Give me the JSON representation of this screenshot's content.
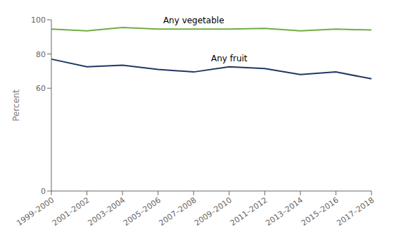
{
  "chart_data": {
    "type": "line",
    "categories": [
      "1999–2000",
      "2001–2002",
      "2003–2004",
      "2005–2006",
      "2007–2008",
      "2009–2010",
      "2011–2012",
      "2013–2014",
      "2015–2016",
      "2017–2018"
    ],
    "series": [
      {
        "name": "Any vegetable",
        "color": "#70AD47",
        "values": [
          94.5,
          93.5,
          95.5,
          94.5,
          94.5,
          94.5,
          95.0,
          93.5,
          94.5,
          94.0
        ]
      },
      {
        "name": "Any fruit",
        "color": "#1F3864",
        "values": [
          77.0,
          72.5,
          73.5,
          71.0,
          69.5,
          72.5,
          71.5,
          68.0,
          69.5,
          65.5
        ]
      }
    ],
    "y_label": "Percent",
    "ylim": [
      0,
      100
    ],
    "yticks": [
      0,
      60,
      80,
      100
    ],
    "grid": false
  }
}
